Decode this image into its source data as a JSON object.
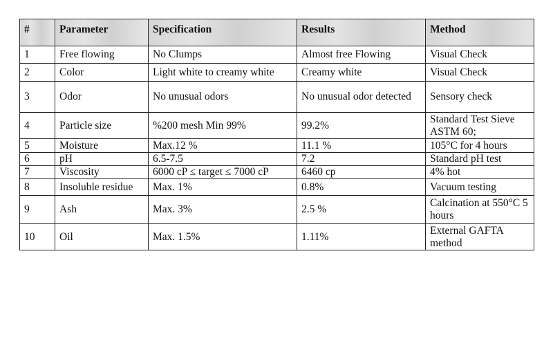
{
  "headers": [
    "#",
    "Parameter",
    "Specification",
    "Results",
    "Method"
  ],
  "rows": [
    [
      "1",
      "Free flowing",
      "No Clumps",
      "Almost free Flowing",
      "Visual Check"
    ],
    [
      "2",
      "Color",
      "Light white to creamy white",
      "Creamy white",
      "Visual Check"
    ],
    [
      "3",
      "Odor",
      "No unusual odors",
      "No unusual odor detected",
      "Sensory check"
    ],
    [
      "4",
      "Particle size",
      "%200 mesh Min 99%",
      "99.2%",
      "Standard Test Sieve ASTM 60;"
    ],
    [
      "5",
      "Moisture",
      "Max.12 %",
      "11.1 %",
      "105°C for 4 hours"
    ],
    [
      "6",
      "pH",
      "6.5-7.5",
      "7.2",
      "Standard pH test"
    ],
    [
      "7",
      "Viscosity",
      "6000 cP ≤ target ≤ 7000 cP",
      "6460 cp",
      "4% hot"
    ],
    [
      "8",
      "Insoluble residue",
      "Max. 1%",
      "0.8%",
      "Vacuum testing"
    ],
    [
      "9",
      "Ash",
      "Max. 3%",
      "2.5 %",
      "Calcination at 550°C 5 hours"
    ],
    [
      "10",
      "Oil",
      "Max. 1.5%",
      "1.11%",
      "External GAFTA method"
    ]
  ]
}
